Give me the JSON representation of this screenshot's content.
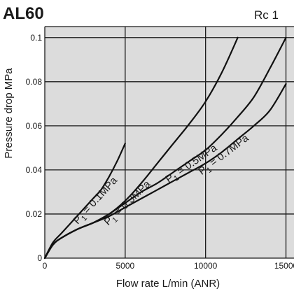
{
  "heading": {
    "model": "AL60",
    "port": "Rc 1"
  },
  "chart_data": {
    "type": "line",
    "xlabel": "Flow rate  L/min (ANR)",
    "ylabel": "Pressure drop  MPa",
    "xlim": [
      0,
      15500
    ],
    "ylim": [
      0,
      0.105
    ],
    "xticks": [
      0,
      5000,
      10000,
      15000
    ],
    "xtick_labels": [
      "0",
      "5000",
      "10000",
      "15000"
    ],
    "yticks": [
      0,
      0.02,
      0.04,
      0.06,
      0.08,
      0.1
    ],
    "ytick_labels": [
      "0",
      "0.02",
      "0.04",
      "0.06",
      "0.08",
      "0.1"
    ],
    "grid": true,
    "background": "#dcdcdc",
    "series": [
      {
        "name": "P1 = 0.1MPa",
        "label_main": "P",
        "label_sub": "1",
        "label_rest": " = 0.1MPa",
        "x": [
          0,
          500,
          1000,
          1500,
          2000,
          2500,
          3000,
          3500,
          4000,
          4500,
          5000
        ],
        "y": [
          0,
          0.007,
          0.011,
          0.015,
          0.019,
          0.023,
          0.027,
          0.031,
          0.037,
          0.044,
          0.052
        ]
      },
      {
        "name": "P1 = 0.3MPa",
        "label_main": "P",
        "label_sub": "1",
        "label_rest": " = 0.3MPa",
        "x": [
          0,
          500,
          1000,
          2000,
          3000,
          4000,
          5000,
          6000,
          7000,
          8000,
          9000,
          10000,
          11000,
          12000
        ],
        "y": [
          0,
          0.006,
          0.009,
          0.013,
          0.016,
          0.02,
          0.026,
          0.034,
          0.043,
          0.052,
          0.061,
          0.071,
          0.084,
          0.1
        ]
      },
      {
        "name": "P1 = 0.5MPa",
        "label_main": "P",
        "label_sub": "1",
        "label_rest": " = 0.5MPa",
        "x": [
          0,
          500,
          1000,
          2000,
          3000,
          4000,
          5000,
          6000,
          7000,
          8000,
          9000,
          10000,
          11000,
          12000,
          13000,
          14000,
          15000
        ],
        "y": [
          0,
          0.006,
          0.009,
          0.013,
          0.016,
          0.02,
          0.025,
          0.03,
          0.034,
          0.039,
          0.044,
          0.049,
          0.056,
          0.064,
          0.073,
          0.086,
          0.1
        ]
      },
      {
        "name": "P1 = 0.7MPa",
        "label_main": "P",
        "label_sub": "1",
        "label_rest": " = 0.7MPa",
        "x": [
          0,
          500,
          1000,
          2000,
          3000,
          4000,
          5000,
          6000,
          7000,
          8000,
          9000,
          10000,
          11000,
          12000,
          13000,
          14000,
          15000
        ],
        "y": [
          0,
          0.006,
          0.009,
          0.013,
          0.016,
          0.019,
          0.023,
          0.027,
          0.031,
          0.035,
          0.039,
          0.043,
          0.048,
          0.054,
          0.06,
          0.067,
          0.079
        ]
      }
    ]
  }
}
